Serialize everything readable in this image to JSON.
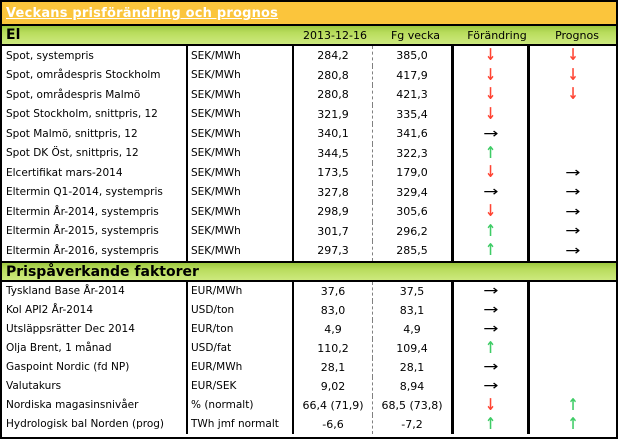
{
  "title": "Veckans prisförändring och prognos",
  "columns": {
    "date": "2013-12-16",
    "prev": "Fg vecka",
    "change": "Förändring",
    "forecast": "Prognos"
  },
  "colors": {
    "title_bar_bg": "#FBC53C",
    "section_gradient_top": "#9CC83E",
    "section_gradient_bottom": "#CDE97E",
    "arrow_down": "#FF4433",
    "arrow_up": "#3FCC66",
    "arrow_right": "#000000"
  },
  "icons": {
    "down": "down-arrow-icon",
    "up": "up-arrow-icon",
    "right": "right-arrow-icon"
  },
  "sections": [
    {
      "header": "El",
      "rows": [
        {
          "label": "Spot, systempris",
          "unit": "SEK/MWh",
          "current": "284,2",
          "previous": "385,0",
          "change": "down",
          "forecast": "down"
        },
        {
          "label": "Spot, områdespris Stockholm",
          "unit": "SEK/MWh",
          "current": "280,8",
          "previous": "417,9",
          "change": "down",
          "forecast": "down"
        },
        {
          "label": "Spot, områdespris Malmö",
          "unit": "SEK/MWh",
          "current": "280,8",
          "previous": "421,3",
          "change": "down",
          "forecast": "down"
        },
        {
          "label": "Spot Stockholm, snittpris,  12",
          "unit": "SEK/MWh",
          "current": "321,9",
          "previous": "335,4",
          "change": "down",
          "forecast": "none"
        },
        {
          "label": "Spot Malmö, snittpris,  12",
          "unit": "SEK/MWh",
          "current": "340,1",
          "previous": "341,6",
          "change": "right",
          "forecast": "none"
        },
        {
          "label": "Spot DK Öst, snittpris,  12",
          "unit": "SEK/MWh",
          "current": "344,5",
          "previous": "322,3",
          "change": "up",
          "forecast": "none"
        },
        {
          "label": "Elcertifikat mars-2014",
          "unit": "SEK/MWh",
          "current": "173,5",
          "previous": "179,0",
          "change": "down",
          "forecast": "right"
        },
        {
          "label": "Eltermin Q1-2014, systempris",
          "unit": "SEK/MWh",
          "current": "327,8",
          "previous": "329,4",
          "change": "right",
          "forecast": "right"
        },
        {
          "label": "Eltermin År-2014, systempris",
          "unit": "SEK/MWh",
          "current": "298,9",
          "previous": "305,6",
          "change": "down",
          "forecast": "right"
        },
        {
          "label": "Eltermin År-2015, systempris",
          "unit": "SEK/MWh",
          "current": "301,7",
          "previous": "296,2",
          "change": "up",
          "forecast": "right"
        },
        {
          "label": "Eltermin År-2016, systempris",
          "unit": "SEK/MWh",
          "current": "297,3",
          "previous": "285,5",
          "change": "up",
          "forecast": "right"
        }
      ]
    },
    {
      "header": "Prispåverkande faktorer",
      "rows": [
        {
          "label": "Tyskland Base År-2014",
          "unit": "EUR/MWh",
          "current": "37,6",
          "previous": "37,5",
          "change": "right",
          "forecast": "none"
        },
        {
          "label": "Kol API2 År-2014",
          "unit": "USD/ton",
          "current": "83,0",
          "previous": "83,1",
          "change": "right",
          "forecast": "none"
        },
        {
          "label": "Utsläppsrätter Dec 2014",
          "unit": "EUR/ton",
          "current": "4,9",
          "previous": "4,9",
          "change": "right",
          "forecast": "none"
        },
        {
          "label": "Olja Brent, 1 månad",
          "unit": "USD/fat",
          "current": "110,2",
          "previous": "109,4",
          "change": "up",
          "forecast": "none"
        },
        {
          "label": "Gaspoint Nordic (fd NP)",
          "unit": "EUR/MWh",
          "current": "28,1",
          "previous": "28,1",
          "change": "right",
          "forecast": "none"
        },
        {
          "label": "Valutakurs",
          "unit": "EUR/SEK",
          "current": "9,02",
          "previous": "8,94",
          "change": "right",
          "forecast": "none"
        },
        {
          "label": "Nordiska magasinsnivåer",
          "unit": "%   (normalt)",
          "current": "66,4 (71,9)",
          "previous": "68,5 (73,8)",
          "change": "down",
          "forecast": "up"
        },
        {
          "label": "Hydrologisk bal Norden (prog)",
          "unit": "TWh jmf normalt",
          "current": "-6,6",
          "previous": "-7,2",
          "change": "up",
          "forecast": "up"
        }
      ]
    }
  ]
}
